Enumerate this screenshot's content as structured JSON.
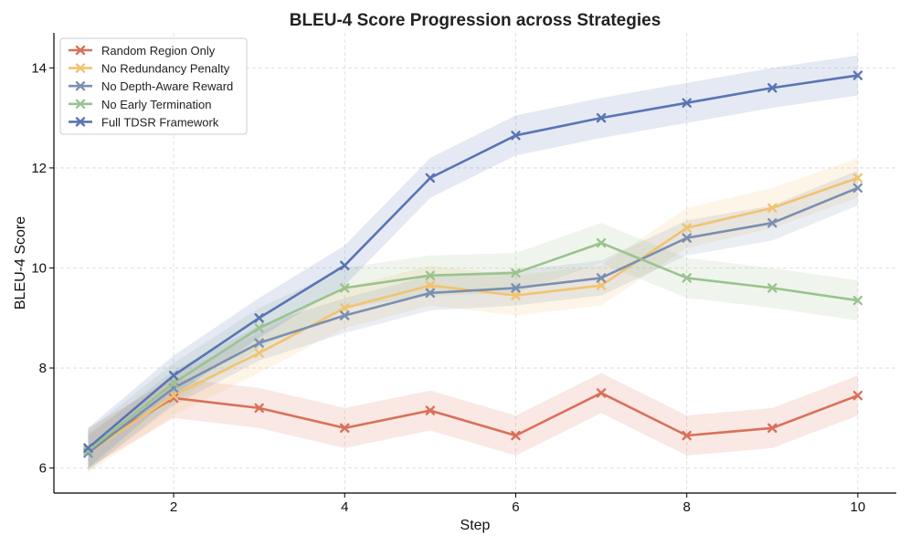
{
  "chart_data": {
    "type": "line",
    "title": "BLEU-4 Score Progression across Strategies",
    "xlabel": "Step",
    "ylabel": "BLEU-4 Score",
    "xlim": [
      0.6,
      10.45
    ],
    "ylim": [
      5.5,
      14.7
    ],
    "xticks": [
      2,
      4,
      6,
      8,
      10
    ],
    "yticks": [
      6,
      8,
      10,
      12,
      14
    ],
    "grid": true,
    "legend_position": "top-left",
    "x": [
      1,
      2,
      3,
      4,
      5,
      6,
      7,
      8,
      9,
      10
    ],
    "series": [
      {
        "name": "Random Region Only",
        "color": "#d9705a",
        "values": [
          6.4,
          7.4,
          7.2,
          6.8,
          7.15,
          6.65,
          7.5,
          6.65,
          6.8,
          7.45
        ],
        "band": 0.4
      },
      {
        "name": "No Redundancy Penalty",
        "color": "#f2c370",
        "values": [
          6.3,
          7.45,
          8.3,
          9.2,
          9.65,
          9.45,
          9.65,
          10.8,
          11.2,
          11.8
        ],
        "band": 0.4
      },
      {
        "name": "No Depth-Aware Reward",
        "color": "#7a8fb0",
        "values": [
          6.3,
          7.6,
          8.5,
          9.05,
          9.5,
          9.6,
          9.8,
          10.6,
          10.9,
          11.6
        ],
        "band": 0.35
      },
      {
        "name": "No Early Termination",
        "color": "#9bc38e",
        "values": [
          6.35,
          7.7,
          8.8,
          9.6,
          9.85,
          9.9,
          10.5,
          9.8,
          9.6,
          9.35
        ],
        "band": 0.4
      },
      {
        "name": "Full TDSR Framework",
        "color": "#5a74b4",
        "values": [
          6.4,
          7.85,
          9.0,
          10.05,
          11.8,
          12.65,
          13.0,
          13.3,
          13.6,
          13.85
        ],
        "band": 0.4
      }
    ]
  }
}
